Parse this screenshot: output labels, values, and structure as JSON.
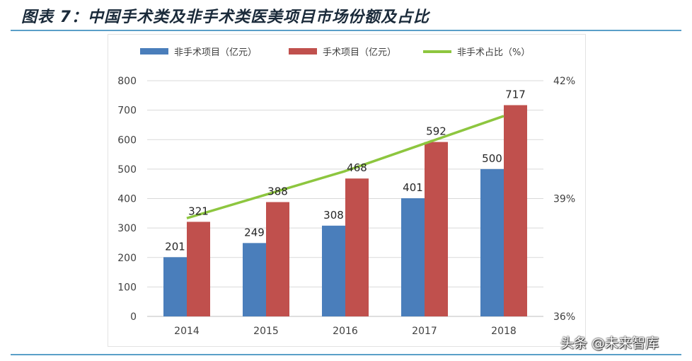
{
  "page": {
    "title": "图表 7：中国手术类及非手术类医美项目市场份额及占比",
    "watermark": "头条 @未来智库"
  },
  "colors": {
    "non_surgical": "#4a7ebb",
    "surgical": "#c0504d",
    "ratio_line": "#8dc63f",
    "title": "#1a2a3a",
    "rule": "#5a9fc8"
  },
  "chart_data": {
    "type": "bar",
    "categories": [
      "2014",
      "2015",
      "2016",
      "2017",
      "2018"
    ],
    "series": [
      {
        "name": "非手术项目（亿元）",
        "kind": "bar",
        "axis": "left",
        "values": [
          201,
          249,
          308,
          401,
          500
        ]
      },
      {
        "name": "手术项目（亿元）",
        "kind": "bar",
        "axis": "left",
        "values": [
          321,
          388,
          468,
          592,
          717
        ]
      },
      {
        "name": "非手术占比（%）",
        "kind": "line",
        "axis": "right",
        "values": [
          38.5,
          39.1,
          39.7,
          40.4,
          41.1
        ]
      }
    ],
    "ylim": [
      0,
      800
    ],
    "yticks": [
      "0",
      "100",
      "200",
      "300",
      "400",
      "500",
      "600",
      "700",
      "800"
    ],
    "y2lim": [
      36,
      42
    ],
    "y2ticks": [
      "36%",
      "39%",
      "42%"
    ],
    "grid": true,
    "legend_position": "top"
  }
}
